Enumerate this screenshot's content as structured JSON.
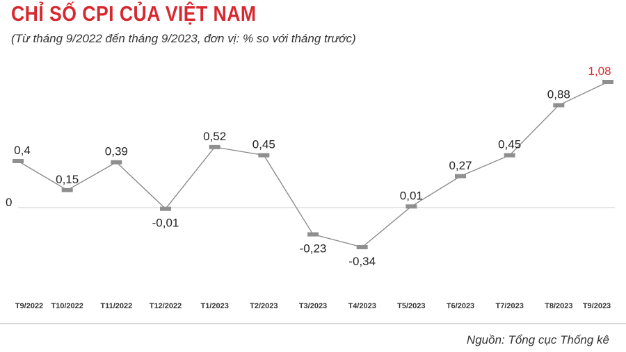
{
  "title": "CHỈ SỐ CPI CỦA VIỆT NAM",
  "subtitle": "(Từ tháng 9/2022 đến tháng 9/2023, đơn vị: % so với tháng trước)",
  "source": "Nguồn: Tổng cục Thống kê",
  "colors": {
    "title": "#d7282f",
    "line": "#8a8a8a",
    "marker": "#8f8f8f",
    "highlight": "#d7282f",
    "zero_line": "#cccccc"
  },
  "chart_data": {
    "type": "line",
    "title": "CHỈ SỐ CPI CỦA VIỆT NAM",
    "xlabel": "",
    "ylabel": "",
    "grid": false,
    "legend": "none",
    "ylim": [
      -0.34,
      1.08
    ],
    "zero_label": "0",
    "categories": [
      "T9/2022",
      "T10/2022",
      "T11/2022",
      "T12/2022",
      "T1/2023",
      "T2/2023",
      "T3/2023",
      "T4/2023",
      "T5/2023",
      "T6/2023",
      "T7/2023",
      "T8/2023",
      "T9/2023"
    ],
    "values": [
      0.4,
      0.15,
      0.39,
      -0.01,
      0.52,
      0.45,
      -0.23,
      -0.34,
      0.01,
      0.27,
      0.45,
      0.88,
      1.08
    ],
    "value_labels": [
      "0,4",
      "0,15",
      "0,39",
      "-0,01",
      "0,52",
      "0,45",
      "-0,23",
      "-0,34",
      "0,01",
      "0,27",
      "0,45",
      "0,88",
      "1,08"
    ],
    "highlight_index": 12
  }
}
